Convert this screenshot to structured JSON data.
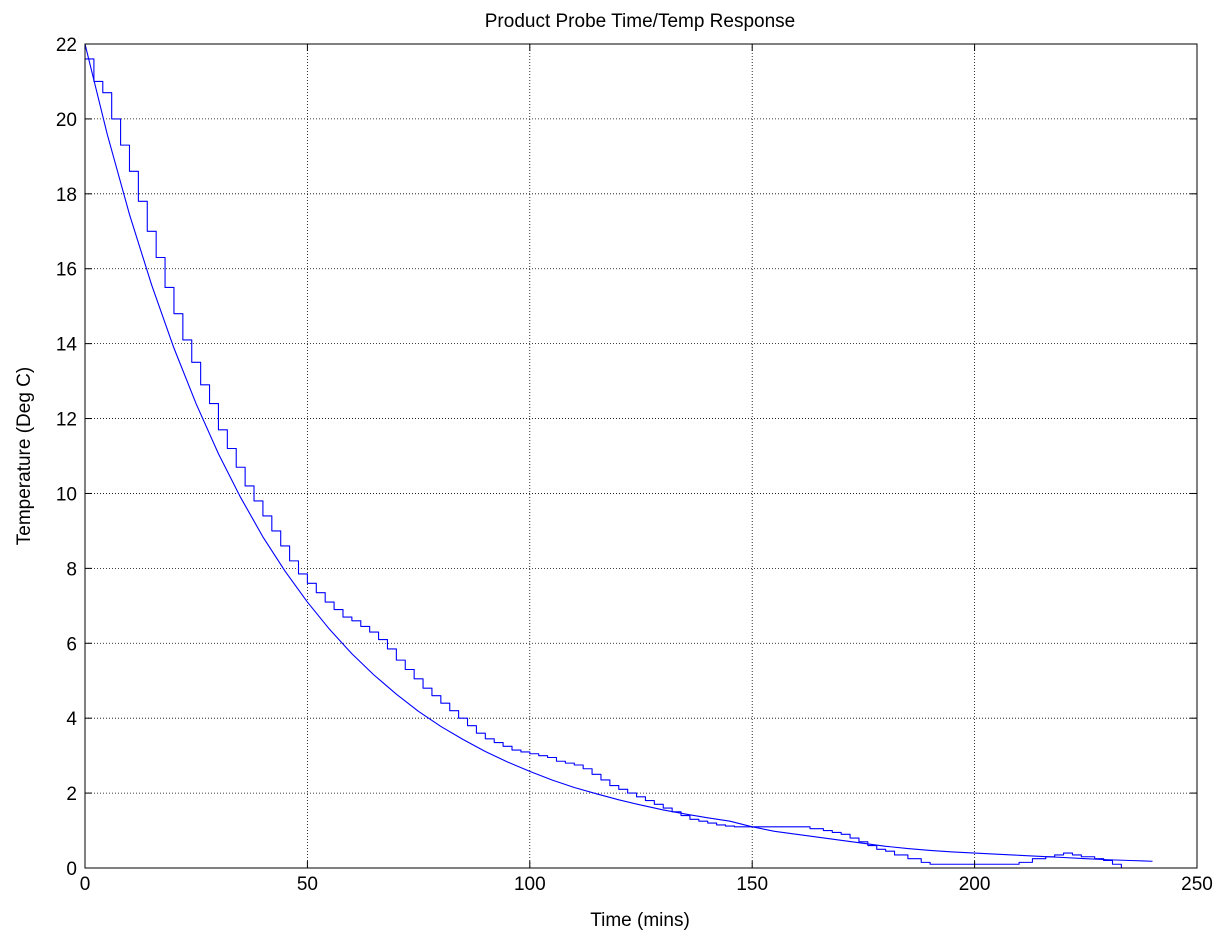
{
  "chart_data": {
    "type": "line",
    "title": "Product Probe Time/Temp Response",
    "xlabel": "Time (mins)",
    "ylabel": "Temperature (Deg C)",
    "xlim": [
      0,
      250
    ],
    "ylim": [
      0,
      22
    ],
    "xticks": [
      0,
      50,
      100,
      150,
      200,
      250
    ],
    "yticks": [
      0,
      2,
      4,
      6,
      8,
      10,
      12,
      14,
      16,
      18,
      20,
      22
    ],
    "grid": true,
    "grid_style": "dotted",
    "legend": "none",
    "colors": {
      "series": "#0000ff",
      "axes": "#000000",
      "grid": "#000000",
      "background": "#ffffff"
    },
    "series": [
      {
        "style": "smooth",
        "points": [
          [
            0,
            22.0
          ],
          [
            5,
            19.59
          ],
          [
            10,
            17.45
          ],
          [
            15,
            15.56
          ],
          [
            20,
            13.88
          ],
          [
            25,
            12.39
          ],
          [
            30,
            11.06
          ],
          [
            35,
            9.89
          ],
          [
            40,
            8.84
          ],
          [
            45,
            7.92
          ],
          [
            50,
            7.1
          ],
          [
            55,
            6.37
          ],
          [
            60,
            5.72
          ],
          [
            65,
            5.15
          ],
          [
            70,
            4.64
          ],
          [
            75,
            4.18
          ],
          [
            80,
            3.78
          ],
          [
            85,
            3.43
          ],
          [
            90,
            3.11
          ],
          [
            95,
            2.83
          ],
          [
            100,
            2.58
          ],
          [
            105,
            2.35
          ],
          [
            110,
            2.15
          ],
          [
            115,
            1.98
          ],
          [
            120,
            1.82
          ],
          [
            125,
            1.68
          ],
          [
            130,
            1.55
          ],
          [
            135,
            1.44
          ],
          [
            140,
            1.34
          ],
          [
            145,
            1.25
          ],
          [
            150,
            1.1
          ],
          [
            155,
            0.98
          ],
          [
            160,
            0.9
          ],
          [
            165,
            0.82
          ],
          [
            170,
            0.74
          ],
          [
            175,
            0.66
          ],
          [
            180,
            0.58
          ],
          [
            185,
            0.52
          ],
          [
            190,
            0.47
          ],
          [
            195,
            0.43
          ],
          [
            200,
            0.4
          ],
          [
            205,
            0.37
          ],
          [
            210,
            0.34
          ],
          [
            215,
            0.31
          ],
          [
            220,
            0.28
          ],
          [
            225,
            0.25
          ],
          [
            230,
            0.22
          ],
          [
            235,
            0.2
          ],
          [
            240,
            0.18
          ]
        ]
      },
      {
        "style": "step",
        "points": [
          [
            0,
            21.6
          ],
          [
            2,
            21.0
          ],
          [
            4,
            20.7
          ],
          [
            6,
            20.0
          ],
          [
            8,
            19.3
          ],
          [
            10,
            18.6
          ],
          [
            12,
            17.8
          ],
          [
            14,
            17.0
          ],
          [
            16,
            16.3
          ],
          [
            18,
            15.5
          ],
          [
            20,
            14.8
          ],
          [
            22,
            14.1
          ],
          [
            24,
            13.5
          ],
          [
            26,
            12.9
          ],
          [
            28,
            12.4
          ],
          [
            30,
            11.7
          ],
          [
            32,
            11.2
          ],
          [
            34,
            10.7
          ],
          [
            36,
            10.2
          ],
          [
            38,
            9.8
          ],
          [
            40,
            9.4
          ],
          [
            42,
            9.0
          ],
          [
            44,
            8.6
          ],
          [
            46,
            8.2
          ],
          [
            48,
            7.85
          ],
          [
            50,
            7.6
          ],
          [
            52,
            7.35
          ],
          [
            54,
            7.1
          ],
          [
            56,
            6.9
          ],
          [
            58,
            6.7
          ],
          [
            60,
            6.6
          ],
          [
            62,
            6.45
          ],
          [
            64,
            6.3
          ],
          [
            66,
            6.1
          ],
          [
            68,
            5.85
          ],
          [
            70,
            5.55
          ],
          [
            72,
            5.3
          ],
          [
            74,
            5.05
          ],
          [
            76,
            4.8
          ],
          [
            78,
            4.6
          ],
          [
            80,
            4.4
          ],
          [
            82,
            4.2
          ],
          [
            84,
            4.0
          ],
          [
            86,
            3.8
          ],
          [
            88,
            3.6
          ],
          [
            90,
            3.45
          ],
          [
            92,
            3.35
          ],
          [
            94,
            3.25
          ],
          [
            96,
            3.15
          ],
          [
            98,
            3.1
          ],
          [
            100,
            3.05
          ],
          [
            102,
            3.0
          ],
          [
            104,
            2.95
          ],
          [
            106,
            2.85
          ],
          [
            108,
            2.8
          ],
          [
            110,
            2.75
          ],
          [
            112,
            2.65
          ],
          [
            114,
            2.5
          ],
          [
            116,
            2.35
          ],
          [
            118,
            2.2
          ],
          [
            120,
            2.1
          ],
          [
            122,
            2.0
          ],
          [
            124,
            1.9
          ],
          [
            126,
            1.8
          ],
          [
            128,
            1.7
          ],
          [
            130,
            1.6
          ],
          [
            132,
            1.5
          ],
          [
            134,
            1.4
          ],
          [
            136,
            1.3
          ],
          [
            138,
            1.25
          ],
          [
            140,
            1.2
          ],
          [
            142,
            1.15
          ],
          [
            144,
            1.12
          ],
          [
            146,
            1.1
          ],
          [
            148,
            1.1
          ],
          [
            150,
            1.1
          ],
          [
            155,
            1.1
          ],
          [
            160,
            1.1
          ],
          [
            163,
            1.05
          ],
          [
            166,
            1.0
          ],
          [
            168,
            0.95
          ],
          [
            170,
            0.9
          ],
          [
            172,
            0.8
          ],
          [
            174,
            0.7
          ],
          [
            176,
            0.6
          ],
          [
            178,
            0.5
          ],
          [
            180,
            0.45
          ],
          [
            182,
            0.35
          ],
          [
            185,
            0.25
          ],
          [
            188,
            0.15
          ],
          [
            190,
            0.1
          ],
          [
            195,
            0.1
          ],
          [
            200,
            0.1
          ],
          [
            205,
            0.1
          ],
          [
            210,
            0.15
          ],
          [
            213,
            0.25
          ],
          [
            216,
            0.3
          ],
          [
            218,
            0.35
          ],
          [
            220,
            0.4
          ],
          [
            222,
            0.35
          ],
          [
            224,
            0.3
          ],
          [
            227,
            0.25
          ],
          [
            229,
            0.2
          ],
          [
            231,
            0.1
          ],
          [
            233,
            0.0
          ]
        ]
      }
    ]
  }
}
